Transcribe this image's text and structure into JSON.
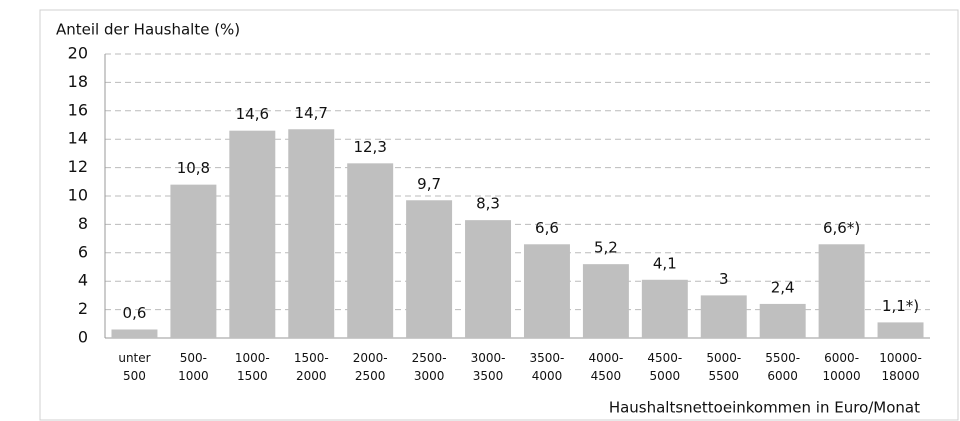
{
  "chart_data": {
    "type": "bar",
    "title": "Anteil der Haushalte (%)",
    "x_label": "Haushaltsnettoeinkommen in Euro/Monat",
    "categories": [
      "unter 500",
      "500-1000",
      "1000-1500",
      "1500-2000",
      "2000-2500",
      "2500-3000",
      "3000-3500",
      "3500-4000",
      "4000-4500",
      "4500-5000",
      "5000-5500",
      "5500-6000",
      "6000-10000",
      "10000-18000"
    ],
    "values": [
      0.6,
      10.8,
      14.6,
      14.7,
      12.3,
      9.7,
      8.3,
      6.6,
      5.2,
      4.1,
      3,
      2.4,
      6.6,
      1.1
    ],
    "value_labels": [
      "0,6",
      "10,8",
      "14,6",
      "14,7",
      "12,3",
      "9,7",
      "8,3",
      "6,6",
      "5,2",
      "4,1",
      "3",
      "2,4",
      "6,6*)",
      "1,1*)"
    ],
    "color": "#bfbfbf",
    "ylim": [
      0,
      20
    ],
    "yticks": [
      0,
      2,
      4,
      6,
      8,
      10,
      12,
      14,
      16,
      18,
      20
    ],
    "grid": true
  }
}
